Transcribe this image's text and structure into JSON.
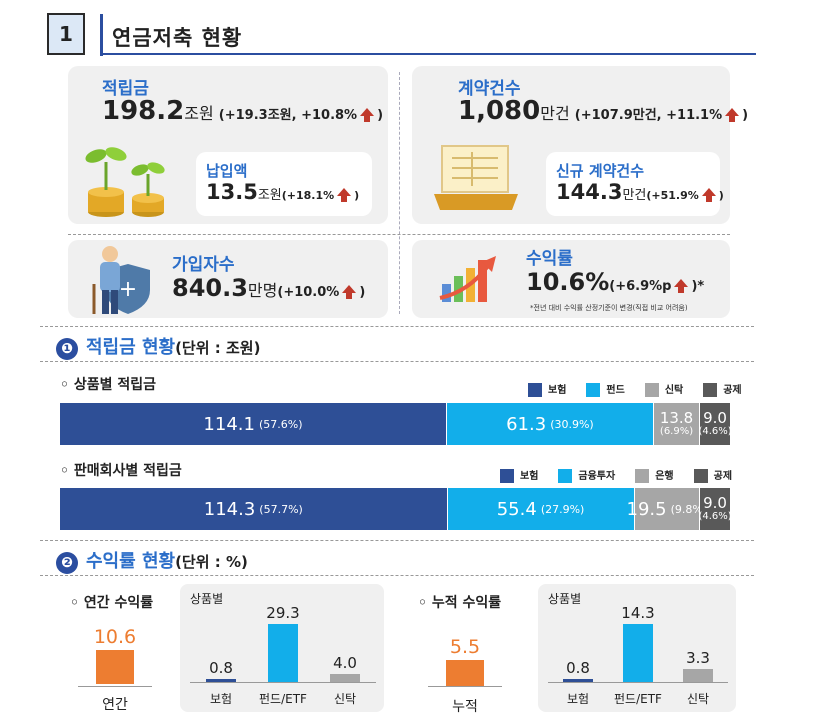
{
  "header": {
    "number": "1",
    "title": "연금저축 현황"
  },
  "summary": {
    "reserve": {
      "label": "적립금",
      "value": "198.2",
      "unit": "조원",
      "delta": "(+19.3조원, +10.8%",
      "delta_end": ")"
    },
    "payment": {
      "label": "납입액",
      "value": "13.5",
      "unit": "조원",
      "delta": "(+18.1%",
      "delta_end": ")"
    },
    "contracts": {
      "label": "계약건수",
      "value": "1,080",
      "unit": "만건",
      "delta": "(+107.9만건, +11.1%",
      "delta_end": ")"
    },
    "new_contracts": {
      "label": "신규 계약건수",
      "value": "144.3",
      "unit": "만건",
      "delta": "(+51.9%",
      "delta_end": ")"
    },
    "subscribers": {
      "label": "가입자수",
      "value": "840.3",
      "unit": "만명",
      "delta": "(+10.0%",
      "delta_end": ")"
    },
    "return": {
      "label": "수익률",
      "value": "10.6%",
      "delta": "(+6.9%p",
      "delta_end": ")*",
      "note": "*전년 대비 수익률 산정기준이 변경(직접 비교 어려움)"
    }
  },
  "section1": {
    "number": "❶",
    "title": "적립금 현황",
    "unit_note": "(단위 : 조원)",
    "by_product": {
      "title": "◦ 상품별 적립금",
      "legend": [
        "보험",
        "펀드",
        "신탁",
        "공제"
      ],
      "segments": [
        {
          "value": "114.1",
          "pct": "(57.6%)",
          "share": 57.6,
          "color": "#2e4f96"
        },
        {
          "value": "61.3",
          "pct": "(30.9%)",
          "share": 30.9,
          "color": "#12aeea"
        },
        {
          "value": "13.8",
          "pct": "(6.9%)",
          "share": 6.9,
          "color": "#a6a6a6"
        },
        {
          "value": "9.0",
          "pct": "(4.6%)",
          "share": 4.6,
          "color": "#595959"
        }
      ]
    },
    "by_seller": {
      "title": "◦ 판매회사별 적립금",
      "legend": [
        "보험",
        "금융투자",
        "은행",
        "공제"
      ],
      "segments": [
        {
          "value": "114.3",
          "pct": "(57.7%)",
          "share": 57.7,
          "color": "#2e4f96"
        },
        {
          "value": "55.4",
          "pct": "(27.9%)",
          "share": 27.9,
          "color": "#12aeea"
        },
        {
          "value": "19.5",
          "pct": "(9.8%)",
          "share": 9.8,
          "color": "#a6a6a6"
        },
        {
          "value": "9.0",
          "pct": "(4.6%)",
          "share": 4.6,
          "color": "#595959"
        }
      ]
    }
  },
  "section2": {
    "number": "❷",
    "title": "수익률 현황",
    "unit_note": "(단위 : %)",
    "annual": {
      "title": "◦ 연간 수익률",
      "total_label": "연간",
      "total_value": "10.6",
      "by_product_title": "상품별",
      "categories": [
        "보험",
        "펀드/ETF",
        "신탁"
      ],
      "values": [
        "0.8",
        "29.3",
        "4.0"
      ],
      "numeric": [
        0.8,
        29.3,
        4.0
      ]
    },
    "cumulative": {
      "title": "◦ 누적 수익률",
      "total_label": "누적",
      "total_value": "5.5",
      "by_product_title": "상품별",
      "categories": [
        "보험",
        "펀드/ETF",
        "신탁"
      ],
      "values": [
        "0.8",
        "14.3",
        "3.3"
      ],
      "numeric": [
        0.8,
        14.3,
        3.3
      ]
    }
  },
  "colors": {
    "insurance": "#2e4f96",
    "fund": "#12aeea",
    "trust": "#a6a6a6",
    "mutual": "#595959",
    "orange": "#ed7d31",
    "accent_blue": "#2b6ec9"
  }
}
